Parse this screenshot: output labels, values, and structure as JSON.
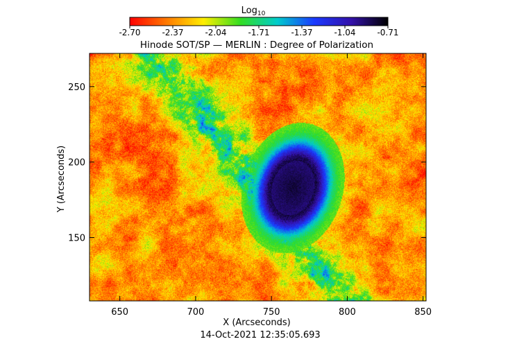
{
  "colorbar": {
    "label_main": "Log",
    "label_sub": "10",
    "ticks": [
      "-2.70",
      "-2.37",
      "-2.04",
      "-1.71",
      "-1.37",
      "-1.04",
      "-0.71"
    ],
    "colors": [
      "#ff0000",
      "#ff7a00",
      "#ffee00",
      "#33dd22",
      "#00cccc",
      "#1a3aff",
      "#3311aa",
      "#000000"
    ]
  },
  "chart_data": {
    "type": "heatmap",
    "title": "Hinode SOT/SP — MERLIN : Degree of Polarization",
    "xlabel": "X (Arcseconds)",
    "ylabel": "Y (Arcseconds)",
    "xlim": [
      630,
      852
    ],
    "ylim": [
      108,
      272
    ],
    "xticks": [
      650,
      700,
      750,
      800,
      850
    ],
    "yticks": [
      150,
      200,
      250
    ],
    "value_scale": "log10",
    "value_range": [
      -2.7,
      -0.71
    ],
    "features": [
      {
        "kind": "sunspot",
        "x": 764,
        "y": 183,
        "log_value": -0.85
      }
    ]
  },
  "footer": {
    "timestamp": "14-Oct-2021 12:35:05.693"
  }
}
